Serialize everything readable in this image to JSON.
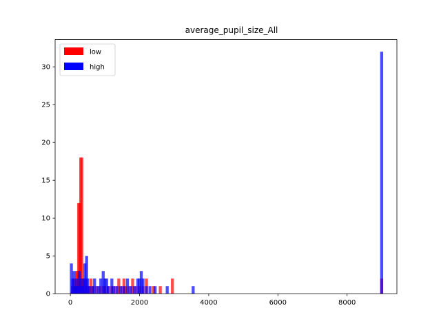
{
  "chart_data": {
    "type": "bar",
    "subtype": "overlaid-histogram",
    "title": "average_pupil_size_All",
    "xlabel": "",
    "ylabel": "",
    "xlim": [
      -440,
      9440
    ],
    "ylim": [
      0,
      33.6
    ],
    "xticks": [
      0,
      2000,
      4000,
      6000,
      8000
    ],
    "yticks": [
      0,
      5,
      10,
      15,
      20,
      25,
      30
    ],
    "bin_width": 90,
    "grid": false,
    "legend_position": "top-left",
    "series": [
      {
        "name": "low",
        "color": "#ff0000",
        "alpha": 0.7,
        "x": [
          60,
          110,
          150,
          190,
          210,
          240,
          270,
          300,
          330,
          360,
          400,
          430,
          480,
          540,
          600,
          650,
          750,
          850,
          950,
          1000,
          1100,
          1200,
          1300,
          1400,
          1500,
          1550,
          1600,
          1700,
          1800,
          1900,
          2000,
          2100,
          2200,
          2400,
          2600,
          2950,
          9000
        ],
        "values": [
          1,
          2,
          1,
          3,
          3,
          12,
          12,
          18,
          18,
          2,
          1,
          2,
          1,
          1,
          2,
          1,
          1,
          1,
          1,
          1,
          1,
          1,
          1,
          2,
          1,
          2,
          1,
          1,
          2,
          1,
          1,
          1,
          2,
          1,
          1,
          2,
          2
        ]
      },
      {
        "name": "high",
        "color": "#0000ff",
        "alpha": 0.7,
        "x": [
          30,
          70,
          110,
          150,
          180,
          220,
          260,
          300,
          340,
          380,
          420,
          470,
          500,
          560,
          650,
          700,
          800,
          880,
          950,
          1000,
          1050,
          1100,
          1200,
          1250,
          1350,
          1450,
          1550,
          1650,
          1750,
          1850,
          1950,
          2000,
          2050,
          2100,
          2200,
          2300,
          2450,
          2800,
          3550,
          9000
        ],
        "values": [
          4,
          2,
          3,
          1,
          2,
          1,
          3,
          2,
          1,
          2,
          4,
          5,
          2,
          1,
          1,
          2,
          1,
          2,
          3,
          2,
          2,
          1,
          2,
          1,
          1,
          1,
          1,
          2,
          1,
          1,
          2,
          2,
          3,
          2,
          1,
          1,
          1,
          1,
          1,
          32
        ]
      }
    ]
  }
}
